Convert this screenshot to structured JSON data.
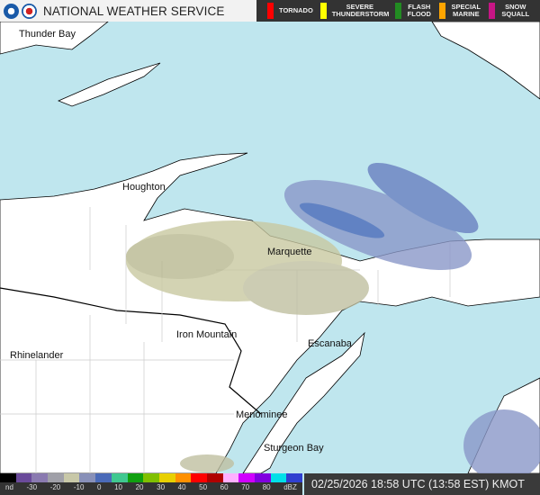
{
  "header": {
    "title": "NATIONAL WEATHER SERVICE",
    "warnings": [
      {
        "label": "TORNADO",
        "color": "#ff0000"
      },
      {
        "label": "SEVERE THUNDERSTORM",
        "color": "#ffff00"
      },
      {
        "label": "FLASH FLOOD",
        "color": "#228b22"
      },
      {
        "label": "SPECIAL MARINE",
        "color": "#ffa500"
      },
      {
        "label": "SNOW SQUALL",
        "color": "#c71585"
      }
    ]
  },
  "places": [
    "Thunder Bay",
    "Houghton",
    "Marquette",
    "Iron Mountain",
    "Escanaba",
    "Rhinelander",
    "Menominee",
    "Sturgeon Bay"
  ],
  "scale": {
    "ticks": [
      "nd",
      "-30",
      "-20",
      "-10",
      "0",
      "10",
      "20",
      "30",
      "40",
      "50",
      "60",
      "70",
      "80",
      "dBZ"
    ],
    "colors": [
      "#000000",
      "#6a4a9a",
      "#8a7ab0",
      "#a0a0a8",
      "#c8c8a8",
      "#8890b8",
      "#4a6ab8",
      "#40c890",
      "#10a010",
      "#80c000",
      "#e8d000",
      "#ff9000",
      "#ff0000",
      "#b00000",
      "#ffb0ff",
      "#d000ff",
      "#8000e0",
      "#00e0e8",
      "#3040d0"
    ]
  },
  "timestamp": "02/25/2026 18:58 UTC (13:58 EST) KMOT",
  "colors": {
    "water": "#bfe6ee",
    "land": "#ffffff"
  }
}
